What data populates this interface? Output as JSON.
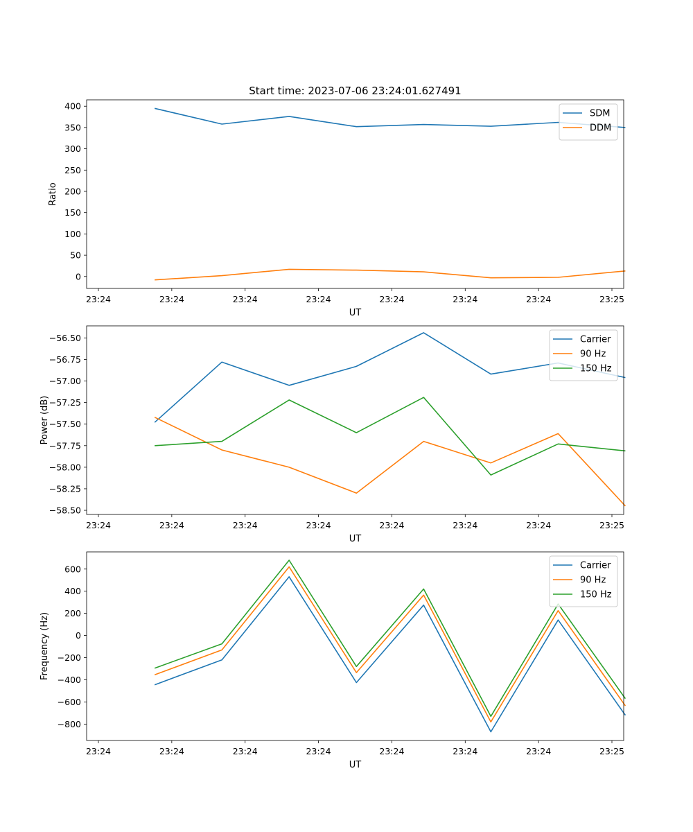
{
  "figure_title": "Start time: 2023-07-06 23:24:01.627491",
  "chart_data": [
    {
      "type": "line",
      "title": "Start time: 2023-07-06 23:24:01.627491",
      "xlabel": "UT",
      "ylabel": "Ratio",
      "x_tick_labels": [
        "23:24",
        "23:24",
        "23:24",
        "23:24",
        "23:24",
        "23:24",
        "23:24"
      ],
      "x_end_tick_label": "23:25",
      "y_ticks": [
        0,
        50,
        100,
        150,
        200,
        250,
        300,
        350,
        400
      ],
      "y_tick_labels": [
        "0",
        "50",
        "100",
        "150",
        "200",
        "250",
        "300",
        "350",
        "400"
      ],
      "ylim": [
        -28,
        415
      ],
      "xlim": [
        -0.5,
        8.5
      ],
      "legend_position": "top-right",
      "x": [
        1,
        2,
        3,
        4,
        5,
        6,
        7,
        8
      ],
      "series": [
        {
          "name": "SDM",
          "color": "#1f77b4",
          "values": [
            395,
            358,
            376,
            352,
            357,
            353,
            362,
            350
          ]
        },
        {
          "name": "DDM",
          "color": "#ff7f0e",
          "values": [
            -8,
            2,
            17,
            15,
            11,
            -3,
            -2,
            13
          ]
        }
      ]
    },
    {
      "type": "line",
      "title": "",
      "xlabel": "UT",
      "ylabel": "Power (dB)",
      "x_tick_labels": [
        "23:24",
        "23:24",
        "23:24",
        "23:24",
        "23:24",
        "23:24",
        "23:24"
      ],
      "x_end_tick_label": "23:25",
      "y_ticks": [
        -58.5,
        -58.25,
        -58.0,
        -57.75,
        -57.5,
        -57.25,
        -57.0,
        -56.75,
        -56.5
      ],
      "y_tick_labels": [
        "−58.50",
        "−58.25",
        "−58.00",
        "−57.75",
        "−57.50",
        "−57.25",
        "−57.00",
        "−56.75",
        "−56.50"
      ],
      "ylim": [
        -58.548,
        -56.36
      ],
      "xlim": [
        -0.5,
        8.5
      ],
      "legend_position": "top-right",
      "x": [
        1,
        2,
        3,
        4,
        5,
        6,
        7,
        8
      ],
      "series": [
        {
          "name": "Carrier",
          "color": "#1f77b4",
          "values": [
            -57.48,
            -56.78,
            -57.05,
            -56.83,
            -56.44,
            -56.92,
            -56.79,
            -56.96
          ]
        },
        {
          "name": "90 Hz",
          "color": "#ff7f0e",
          "values": [
            -57.42,
            -57.8,
            -58.0,
            -58.3,
            -57.7,
            -57.95,
            -57.61,
            -58.45
          ]
        },
        {
          "name": "150 Hz",
          "color": "#2ca02c",
          "values": [
            -57.75,
            -57.7,
            -57.22,
            -57.6,
            -57.19,
            -58.09,
            -57.73,
            -57.81
          ]
        }
      ]
    },
    {
      "type": "line",
      "title": "",
      "xlabel": "UT",
      "ylabel": "Frequency (Hz)",
      "x_tick_labels": [
        "23:24",
        "23:24",
        "23:24",
        "23:24",
        "23:24",
        "23:24",
        "23:24"
      ],
      "x_end_tick_label": "23:25",
      "y_ticks": [
        -800,
        -600,
        -400,
        -200,
        0,
        200,
        400,
        600
      ],
      "y_tick_labels": [
        "−800",
        "−600",
        "−400",
        "−200",
        "0",
        "200",
        "400",
        "600"
      ],
      "ylim": [
        -948,
        755
      ],
      "xlim": [
        -0.5,
        8.5
      ],
      "legend_position": "top-right",
      "x": [
        1,
        2,
        3,
        4,
        5,
        6,
        7,
        8
      ],
      "series": [
        {
          "name": "Carrier",
          "color": "#1f77b4",
          "values": [
            -445,
            -220,
            530,
            -425,
            275,
            -870,
            140,
            -720
          ]
        },
        {
          "name": "90 Hz",
          "color": "#ff7f0e",
          "values": [
            -355,
            -130,
            620,
            -335,
            365,
            -780,
            225,
            -635
          ]
        },
        {
          "name": "150 Hz",
          "color": "#2ca02c",
          "values": [
            -295,
            -75,
            680,
            -280,
            420,
            -730,
            285,
            -570
          ]
        }
      ]
    }
  ]
}
